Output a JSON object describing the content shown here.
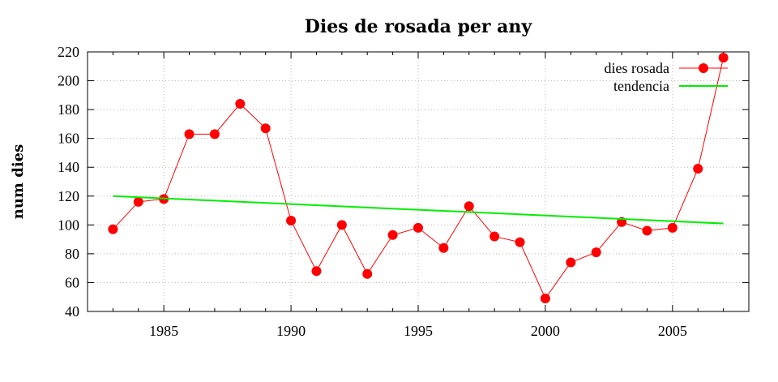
{
  "chart_data": {
    "type": "line",
    "title": "Dies de rosada per any",
    "xlabel": "",
    "ylabel": "num dies",
    "xlim": [
      1982,
      2008
    ],
    "ylim": [
      40,
      220
    ],
    "xticks": [
      1985,
      1990,
      1995,
      2000,
      2005
    ],
    "yticks": [
      40,
      60,
      80,
      100,
      120,
      140,
      160,
      180,
      200,
      220
    ],
    "grid": true,
    "legend_position": "top-right",
    "series": [
      {
        "name": "dies rosada",
        "color": "#ff0000",
        "marker": "circle",
        "x": [
          1983,
          1984,
          1985,
          1986,
          1987,
          1988,
          1989,
          1990,
          1991,
          1992,
          1993,
          1994,
          1995,
          1996,
          1997,
          1998,
          1999,
          2000,
          2001,
          2002,
          2003,
          2004,
          2005,
          2006,
          2007
        ],
        "y": [
          97,
          116,
          118,
          163,
          163,
          184,
          167,
          103,
          68,
          100,
          66,
          93,
          98,
          84,
          113,
          92,
          88,
          49,
          74,
          81,
          102,
          96,
          98,
          139,
          216
        ]
      },
      {
        "name": "tendencia",
        "color": "#00ee00",
        "marker": "none",
        "x": [
          1983,
          2007
        ],
        "y": [
          120,
          101
        ]
      }
    ]
  }
}
